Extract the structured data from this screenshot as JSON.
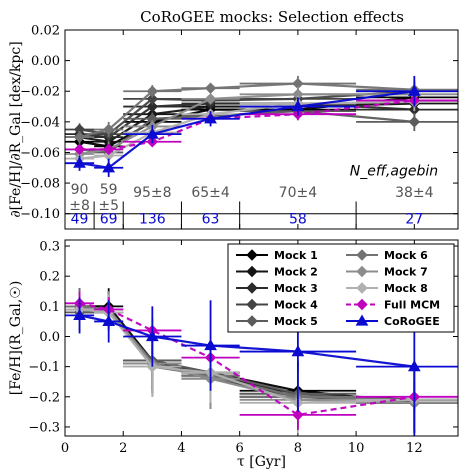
{
  "figure_title": "CoRoGEE mocks: Selection effects",
  "colors": {
    "mock1": "#000000",
    "mock2": "#151515",
    "mock3": "#2c2c2c",
    "mock4": "#444444",
    "mock5": "#5c5c5c",
    "mock6": "#737373",
    "mock7": "#8c8c8c",
    "mock8": "#b0b0b0",
    "full_mcm": "#bf00bf",
    "corogee": "#0a0ad0",
    "counts_gray": "#555555",
    "counts_blue": "#0a0ad0"
  },
  "chart_data": [
    {
      "type": "line",
      "panel": "top",
      "title": "CoRoGEE mocks: Selection effects",
      "ylabel": "∂[Fe/H]/∂R_Gal [dex/kpc]",
      "xlim": [
        0,
        13.5
      ],
      "ylim": [
        -0.11,
        0.02
      ],
      "yticks": [
        0.02,
        0.0,
        -0.02,
        -0.04,
        -0.06,
        -0.08,
        -0.1
      ],
      "ytick_labels": [
        "0.02",
        "0.00",
        "−0.02",
        "−0.04",
        "−0.06",
        "−0.08",
        "−0.10"
      ],
      "x": [
        0.5,
        1.5,
        3,
        5,
        8,
        12
      ],
      "xerr": [
        0.5,
        0.5,
        1,
        1,
        2,
        2
      ],
      "series": [
        {
          "name": "Mock 1",
          "color": "mock1",
          "marker": "o",
          "values": [
            -0.053,
            -0.056,
            -0.04,
            -0.032,
            -0.032,
            -0.024
          ],
          "yerr": [
            0.004,
            0.005,
            0.004,
            0.003,
            0.005,
            0.006
          ]
        },
        {
          "name": "Mock 2",
          "color": "mock2",
          "marker": "o",
          "values": [
            -0.05,
            -0.053,
            -0.035,
            -0.03,
            -0.03,
            -0.028
          ],
          "yerr": [
            0.004,
            0.005,
            0.004,
            0.003,
            0.005,
            0.006
          ]
        },
        {
          "name": "Mock 3",
          "color": "mock3",
          "marker": "o",
          "values": [
            -0.048,
            -0.05,
            -0.03,
            -0.028,
            -0.028,
            -0.032
          ],
          "yerr": [
            0.004,
            0.005,
            0.004,
            0.003,
            0.005,
            0.006
          ]
        },
        {
          "name": "Mock 4",
          "color": "mock4",
          "marker": "o",
          "values": [
            -0.045,
            -0.048,
            -0.025,
            -0.026,
            -0.025,
            -0.02
          ],
          "yerr": [
            0.004,
            0.005,
            0.004,
            0.003,
            0.005,
            0.006
          ]
        },
        {
          "name": "Mock 5",
          "color": "mock5",
          "marker": "o",
          "values": [
            -0.058,
            -0.06,
            -0.038,
            -0.036,
            -0.033,
            -0.04
          ],
          "yerr": [
            0.004,
            0.005,
            0.004,
            0.003,
            0.005,
            0.006
          ]
        },
        {
          "name": "Mock 6",
          "color": "mock6",
          "marker": "o",
          "values": [
            -0.05,
            -0.045,
            -0.02,
            -0.018,
            -0.015,
            -0.019
          ],
          "yerr": [
            0.004,
            0.005,
            0.004,
            0.003,
            0.005,
            0.006
          ]
        },
        {
          "name": "Mock 7",
          "color": "mock7",
          "marker": "o",
          "values": [
            -0.061,
            -0.058,
            -0.043,
            -0.025,
            -0.022,
            -0.022
          ],
          "yerr": [
            0.004,
            0.005,
            0.004,
            0.003,
            0.005,
            0.006
          ]
        },
        {
          "name": "Mock 8",
          "color": "mock8",
          "marker": "o",
          "values": [
            -0.064,
            -0.062,
            -0.047,
            -0.035,
            -0.028,
            -0.027
          ],
          "yerr": [
            0.004,
            0.005,
            0.004,
            0.003,
            0.005,
            0.006
          ]
        },
        {
          "name": "Full MCM",
          "color": "full_mcm",
          "marker": "o",
          "dashed": true,
          "values": [
            -0.058,
            -0.058,
            -0.053,
            -0.038,
            -0.035,
            -0.026
          ],
          "yerr": [
            0.003,
            0.003,
            0.003,
            0.003,
            0.004,
            0.004
          ]
        },
        {
          "name": "CoRoGEE",
          "color": "corogee",
          "marker": "^",
          "values": [
            -0.067,
            -0.07,
            -0.048,
            -0.038,
            -0.03,
            -0.02
          ],
          "yerr": [
            0.005,
            0.006,
            0.006,
            0.005,
            0.006,
            0.01
          ]
        }
      ],
      "neff_label": "N_eff,agebin",
      "neff_gray_top": [
        "90",
        "59",
        "95±8",
        "65±4",
        "70±4",
        "38±4"
      ],
      "neff_gray_bottom": [
        "±8",
        "±5",
        "",
        "",
        "",
        ""
      ],
      "neff_blue": [
        "49",
        "69",
        "136",
        "63",
        "58",
        "27"
      ]
    },
    {
      "type": "line",
      "panel": "bottom",
      "xlabel": "τ [Gyr]",
      "ylabel": "[Fe/H](R_Gal,☉)",
      "xlim": [
        0,
        13.5
      ],
      "ylim": [
        -0.33,
        0.32
      ],
      "xticks": [
        0,
        2,
        4,
        6,
        8,
        10,
        12
      ],
      "yticks": [
        0.3,
        0.2,
        0.1,
        0.0,
        -0.1,
        -0.2,
        -0.3
      ],
      "ytick_labels": [
        "0.3",
        "0.2",
        "0.1",
        "0.0",
        "−0.1",
        "−0.2",
        "−0.3"
      ],
      "x": [
        0.5,
        1.5,
        3,
        5,
        8,
        12
      ],
      "xerr": [
        0.5,
        0.5,
        1,
        1,
        2,
        2
      ],
      "series": [
        {
          "name": "Mock 1",
          "color": "mock1",
          "marker": "o",
          "values": [
            0.1,
            0.1,
            -0.08,
            -0.12,
            -0.18,
            -0.22
          ],
          "yerr": [
            0.06,
            0.06,
            0.1,
            0.1,
            0.1,
            0.1
          ]
        },
        {
          "name": "Mock 2",
          "color": "mock2",
          "marker": "o",
          "values": [
            0.09,
            0.09,
            -0.08,
            -0.13,
            -0.19,
            -0.21
          ],
          "yerr": [
            0.06,
            0.06,
            0.1,
            0.1,
            0.1,
            0.1
          ]
        },
        {
          "name": "Mock 3",
          "color": "mock3",
          "marker": "o",
          "values": [
            0.09,
            0.08,
            -0.09,
            -0.13,
            -0.2,
            -0.22
          ],
          "yerr": [
            0.06,
            0.06,
            0.1,
            0.1,
            0.1,
            0.1
          ]
        },
        {
          "name": "Mock 4",
          "color": "mock4",
          "marker": "o",
          "values": [
            0.1,
            0.09,
            -0.09,
            -0.14,
            -0.2,
            -0.21
          ],
          "yerr": [
            0.06,
            0.06,
            0.1,
            0.1,
            0.1,
            0.1
          ]
        },
        {
          "name": "Mock 5",
          "color": "mock5",
          "marker": "o",
          "values": [
            0.08,
            0.08,
            -0.08,
            -0.12,
            -0.19,
            -0.22
          ],
          "yerr": [
            0.06,
            0.06,
            0.1,
            0.1,
            0.1,
            0.1
          ]
        },
        {
          "name": "Mock 6",
          "color": "mock6",
          "marker": "o",
          "values": [
            0.1,
            0.09,
            -0.1,
            -0.13,
            -0.2,
            -0.21
          ],
          "yerr": [
            0.06,
            0.06,
            0.1,
            0.1,
            0.1,
            0.1
          ]
        },
        {
          "name": "Mock 7",
          "color": "mock7",
          "marker": "o",
          "values": [
            0.09,
            0.09,
            -0.09,
            -0.14,
            -0.21,
            -0.22
          ],
          "yerr": [
            0.06,
            0.06,
            0.1,
            0.1,
            0.1,
            0.1
          ]
        },
        {
          "name": "Mock 8",
          "color": "mock8",
          "marker": "o",
          "values": [
            0.09,
            0.08,
            -0.1,
            -0.12,
            -0.22,
            -0.21
          ],
          "yerr": [
            0.06,
            0.06,
            0.1,
            0.1,
            0.1,
            0.1
          ]
        },
        {
          "name": "Full MCM",
          "color": "full_mcm",
          "marker": "o",
          "dashed": true,
          "values": [
            0.11,
            0.09,
            0.02,
            -0.07,
            -0.26,
            -0.2
          ],
          "yerr": [
            0.04,
            0.04,
            0.04,
            0.05,
            0.05,
            0.05
          ]
        },
        {
          "name": "CoRoGEE",
          "color": "corogee",
          "marker": "^",
          "values": [
            0.07,
            0.05,
            0.0,
            -0.03,
            -0.05,
            -0.1
          ],
          "yerr": [
            0.06,
            0.07,
            0.1,
            0.15,
            0.2,
            0.25
          ]
        }
      ],
      "legend": {
        "placement": "top-right",
        "column1": [
          "Mock 1",
          "Mock 2",
          "Mock 3",
          "Mock 4",
          "Mock 5"
        ],
        "column2": [
          "Mock 6",
          "Mock 7",
          "Mock 8",
          "Full MCM",
          "CoRoGEE"
        ]
      }
    }
  ]
}
